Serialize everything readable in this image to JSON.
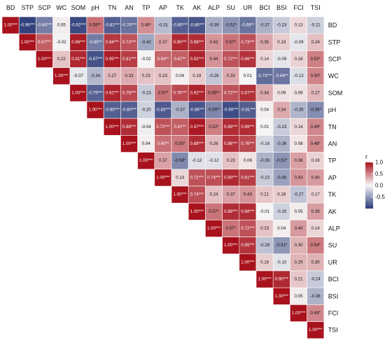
{
  "chart_data": {
    "type": "heatmap",
    "title": "",
    "variables": [
      "BD",
      "STP",
      "SCP",
      "WC",
      "SOM",
      "pH",
      "TN",
      "AN",
      "TP",
      "AP",
      "TK",
      "AK",
      "ALP",
      "SU",
      "UR",
      "BCI",
      "BSI",
      "FCI",
      "TSI"
    ],
    "matrix_labels": [
      [
        "1.00***",
        "-0.96***",
        "-0.64***",
        "0.05",
        "-0.92***",
        "0.59**",
        "-0.81***",
        "-0.70***",
        "0.46*",
        "-0.31",
        "-0.80***",
        "-0.86***",
        "-0.39",
        "-0.52*",
        "-0.69**",
        "-0.37",
        "-0.23",
        "0.13",
        "-0.21"
      ],
      [
        "1.00***",
        "0.67***",
        "-0.02",
        "0.96***",
        "-0.65**",
        "0.84***",
        "0.72***",
        "-0.42",
        "0.37",
        "0.90***",
        "0.88***",
        "0.43",
        "0.57*",
        "0.73***",
        "0.35",
        "0.19",
        "-0.09",
        "0.24"
      ],
      [
        "1.00***",
        "0.22",
        "0.91***",
        "-0.87***",
        "0.95***",
        "0.81***",
        "-0.02",
        "0.64**",
        "0.67**",
        "0.92***",
        "0.44",
        "0.72***",
        "0.86***",
        "0.14",
        "-0.09",
        "0.16",
        "0.52*"
      ],
      [
        "1.00***",
        "-0.07",
        "-0.34",
        "0.27",
        "0.33",
        "0.23",
        "0.23",
        "0.04",
        "0.19",
        "-0.26",
        "0.33",
        "0.01",
        "-0.73***",
        "-0.68**",
        "-0.13",
        "0.50*"
      ],
      [
        "1.00***",
        "-0.79***",
        "0.92***",
        "0.76***",
        "-0.23",
        "0.57*",
        "0.76***",
        "0.92***",
        "0.59**",
        "0.72***",
        "0.87***",
        "0.34",
        "0.09",
        "0.09",
        "0.27"
      ],
      [
        "1.00***",
        "-0.80***",
        "-0.80***",
        "-0.20",
        "-0.83***",
        "-0.37",
        "-0.86***",
        "-0.59**",
        "-0.90***",
        "-0.81***",
        "0.04",
        "0.34",
        "-0.35",
        "-0.56*"
      ],
      [
        "1.00***",
        "0.88***",
        "-0.04",
        "0.72***",
        "0.67**",
        "0.97***",
        "0.52*",
        "0.89***",
        "0.89***",
        "0.01",
        "-0.23",
        "0.14",
        "0.49*"
      ],
      [
        "1.00***",
        "0.04",
        "0.60**",
        "0.55*",
        "0.88***",
        "0.26",
        "0.86***",
        "0.76***",
        "-0.16",
        "-0.36",
        "0.08",
        "0.48*"
      ],
      [
        "1.00***",
        "0.37",
        "-0.58*",
        "-0.12",
        "-0.12",
        "0.23",
        "0.08",
        "-0.36",
        "-0.52*",
        "0.38",
        "0.16"
      ],
      [
        "1.00***",
        "0.14",
        "0.72***",
        "0.74***",
        "0.90***",
        "0.81***",
        "-0.23",
        "-0.45",
        "0.43",
        "0.40"
      ],
      [
        "1.00***",
        "0.74***",
        "0.24",
        "0.37",
        "0.43",
        "0.21",
        "0.18",
        "-0.27",
        "0.17"
      ],
      [
        "1.00***",
        "0.57*",
        "0.88***",
        "0.88***",
        "-0.01",
        "-0.20",
        "0.05",
        "0.39"
      ],
      [
        "1.00***",
        "0.57*",
        "0.72***",
        "0.23",
        "0.04",
        "0.40",
        "0.14"
      ],
      [
        "1.00***",
        "0.85***",
        "-0.28",
        "-0.51*",
        "0.30",
        "0.54*"
      ],
      [
        "1.00***",
        "0.18",
        "-0.10",
        "0.29",
        "0.30"
      ],
      [
        "1.00***",
        "0.90***",
        "0.21",
        "-0.24"
      ],
      [
        "1.00***",
        "0.05",
        "-0.36"
      ],
      [
        "1.00***",
        "0.49*"
      ],
      [
        "1.00***"
      ]
    ],
    "legend": {
      "title": "r",
      "range": [
        -1,
        1
      ],
      "ticks": [
        "1.0",
        "0.5",
        "0.0",
        "-0.5"
      ],
      "tick_values": [
        1.0,
        0.5,
        0.0,
        -0.5
      ],
      "placement": "right"
    },
    "colors": {
      "negative": "#2b3a78",
      "neutral": "#f7f7f7",
      "positive": "#a8121c"
    }
  }
}
